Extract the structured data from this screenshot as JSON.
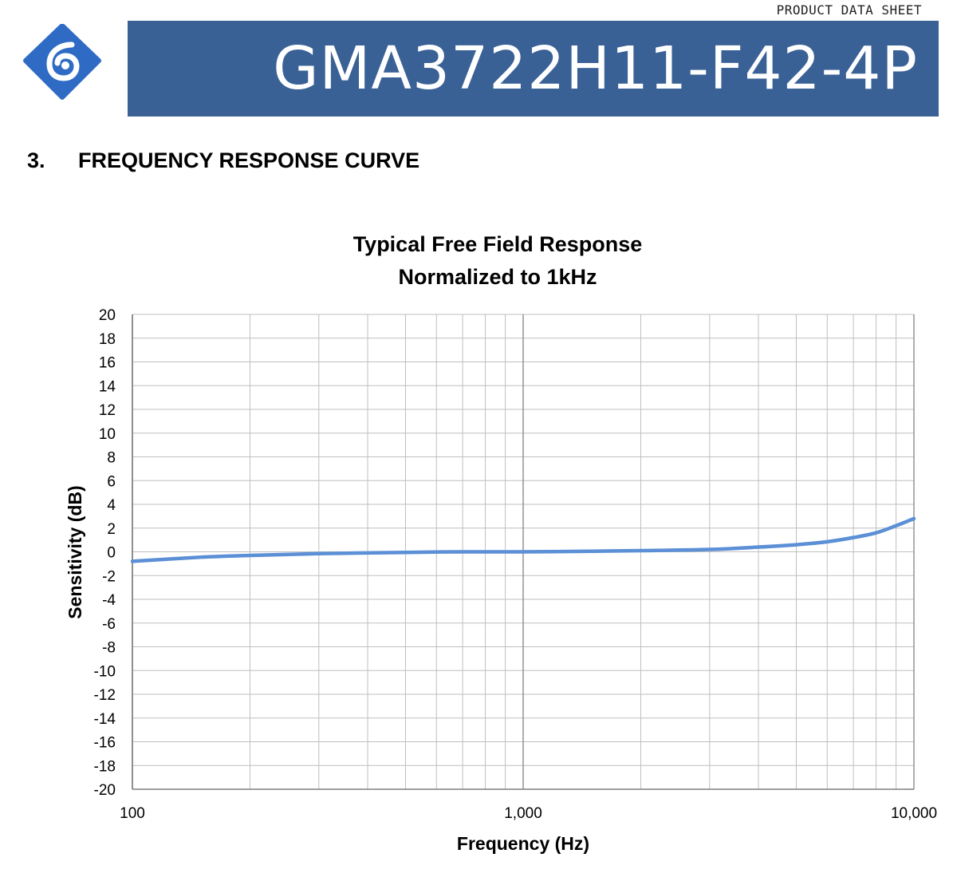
{
  "header": {
    "doc_label": "PRODUCT DATA SHEET",
    "part_number": "GMA3722H11-F42-4P",
    "logo_icon": "company-logo-icon",
    "brand_color": "#3a6196"
  },
  "section": {
    "number": "3.",
    "title": "FREQUENCY RESPONSE CURVE"
  },
  "chart_data": {
    "type": "line",
    "title": "Typical Free Field Response",
    "subtitle": "Normalized to 1kHz",
    "xlabel": "Frequency (Hz)",
    "ylabel": "Sensitivity (dB)",
    "xscale": "log",
    "xlim": [
      100,
      10000
    ],
    "ylim": [
      -20,
      20
    ],
    "ystep": 2,
    "x_tick_labels": [
      {
        "value": 100,
        "label": "100"
      },
      {
        "value": 1000,
        "label": "1,000"
      },
      {
        "value": 10000,
        "label": "10,000"
      }
    ],
    "grid": true,
    "legend": "none",
    "series": [
      {
        "color": "#5b8fd6",
        "x": [
          100,
          150,
          200,
          300,
          500,
          700,
          1000,
          1500,
          2000,
          3000,
          4000,
          5000,
          6000,
          7000,
          8000,
          9000,
          10000
        ],
        "y": [
          -0.8,
          -0.45,
          -0.3,
          -0.15,
          -0.05,
          0.0,
          0.0,
          0.05,
          0.1,
          0.2,
          0.4,
          0.6,
          0.85,
          1.2,
          1.6,
          2.2,
          2.8
        ]
      }
    ]
  }
}
